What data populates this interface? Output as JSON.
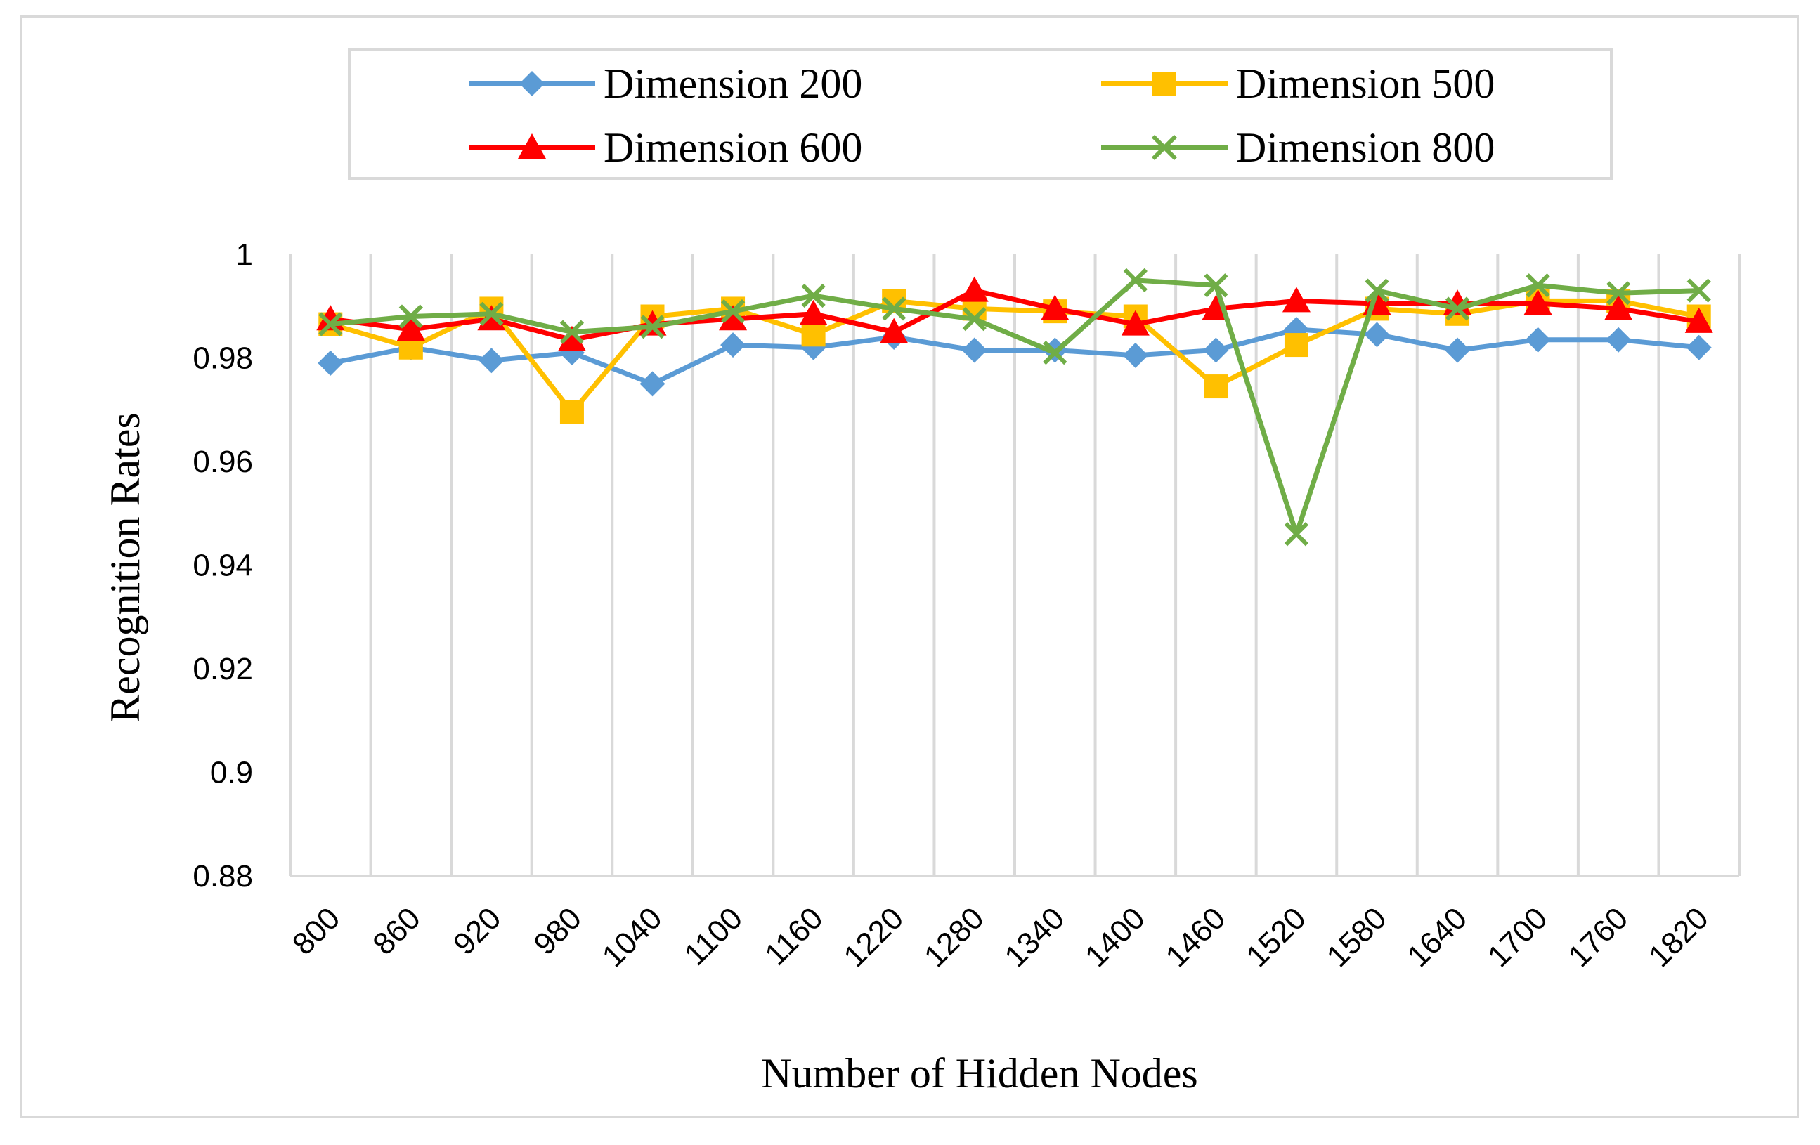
{
  "chart_data": {
    "type": "line",
    "title": "",
    "xlabel": "Number of Hidden Nodes",
    "ylabel": "Recognition Rates",
    "ylim": [
      0.88,
      1.0
    ],
    "yticks": [
      "0.88",
      "0.9",
      "0.92",
      "0.94",
      "0.96",
      "0.98",
      "1"
    ],
    "categories": [
      "800",
      "860",
      "920",
      "980",
      "1040",
      "1100",
      "1160",
      "1220",
      "1280",
      "1340",
      "1400",
      "1460",
      "1520",
      "1580",
      "1640",
      "1700",
      "1760",
      "1820"
    ],
    "grid": "vertical",
    "legend_position": "top",
    "series": [
      {
        "name": "Dimension 200",
        "color": "#5b9bd5",
        "marker": "diamond",
        "values": [
          0.979,
          0.982,
          0.9795,
          0.981,
          0.975,
          0.9825,
          0.982,
          0.984,
          0.9815,
          0.9815,
          0.9805,
          0.9815,
          0.9855,
          0.9845,
          0.9815,
          0.9835,
          0.9835,
          0.982
        ]
      },
      {
        "name": "Dimension 500",
        "color": "#ffc000",
        "marker": "square",
        "values": [
          0.9865,
          0.982,
          0.9895,
          0.9695,
          0.988,
          0.9895,
          0.9845,
          0.991,
          0.9895,
          0.989,
          0.988,
          0.9745,
          0.9825,
          0.9895,
          0.9885,
          0.991,
          0.991,
          0.988
        ]
      },
      {
        "name": "Dimension 600",
        "color": "#ff0000",
        "marker": "triangle",
        "values": [
          0.9875,
          0.9855,
          0.9875,
          0.9835,
          0.9865,
          0.9875,
          0.9885,
          0.985,
          0.993,
          0.9895,
          0.9865,
          0.9895,
          0.991,
          0.9905,
          0.9905,
          0.9905,
          0.9895,
          0.987
        ]
      },
      {
        "name": "Dimension 800",
        "color": "#70ad47",
        "marker": "x",
        "values": [
          0.9865,
          0.988,
          0.9885,
          0.985,
          0.986,
          0.989,
          0.992,
          0.9895,
          0.9875,
          0.981,
          0.995,
          0.994,
          0.946,
          0.993,
          0.9895,
          0.994,
          0.9925,
          0.993
        ]
      }
    ]
  }
}
